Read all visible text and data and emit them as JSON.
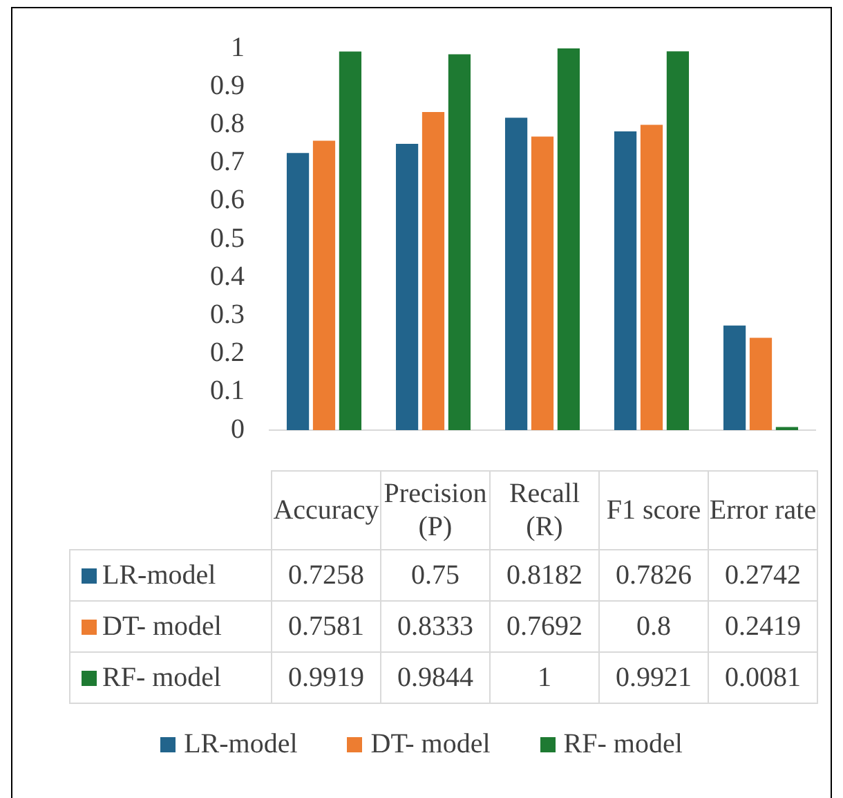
{
  "chart_data": {
    "type": "bar",
    "categories": [
      "Accuracy",
      "Precision (P)",
      "Recall (R)",
      "F1 score",
      "Error rate"
    ],
    "series": [
      {
        "name": "LR-model",
        "color": "#22648c",
        "values": [
          0.7258,
          0.75,
          0.8182,
          0.7826,
          0.2742
        ]
      },
      {
        "name": "DT- model",
        "color": "#ed7d31",
        "values": [
          0.7581,
          0.8333,
          0.7692,
          0.8,
          0.2419
        ]
      },
      {
        "name": "RF- model",
        "color": "#1e7a32",
        "values": [
          0.9919,
          0.9844,
          1,
          0.9921,
          0.0081
        ]
      }
    ],
    "ylim": [
      0,
      1
    ],
    "yticks": [
      0,
      0.1,
      0.2,
      0.3,
      0.4,
      0.5,
      0.6,
      0.7,
      0.8,
      0.9,
      1
    ],
    "grid": false,
    "legend": "bottom",
    "data_labels": true
  }
}
